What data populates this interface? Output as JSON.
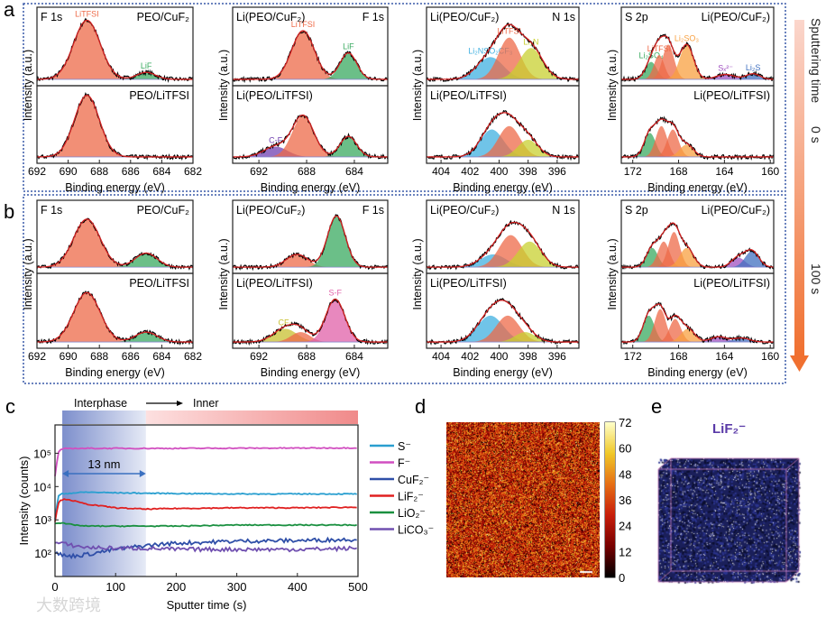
{
  "panel_letters": [
    "a",
    "b",
    "c",
    "d",
    "e"
  ],
  "common": {
    "xlabel": "Binding energy (eV)",
    "ylabel": "Intensity (a.u.)"
  },
  "sputter_arrow": {
    "label": "Sputtering time",
    "start": "0 s",
    "end": "100 s"
  },
  "chart_data": [
    {
      "type": "line",
      "name": "xps-panel-a",
      "panel": "a",
      "plots": [
        {
          "xlim": [
            692,
            682
          ],
          "xticks": [
            692,
            690,
            688,
            686,
            684,
            682
          ],
          "corner_left": "F 1s",
          "corner_right": "PEO/CuF₂",
          "subplots": [
            {
              "label_left": "F 1s",
              "label_right": "PEO/CuF₂",
              "peaks": [
                {
                  "c": 688.8,
                  "h": 0.85,
                  "w": 0.85,
                  "color": "#ee6a48",
                  "label": "LiTFSI"
                },
                {
                  "c": 685.0,
                  "h": 0.1,
                  "w": 0.6,
                  "color": "#3aaa60",
                  "label": "LiF"
                }
              ]
            },
            {
              "label_left": "",
              "label_right": "PEO/LiTFSI",
              "peaks": [
                {
                  "c": 688.8,
                  "h": 0.9,
                  "w": 0.8,
                  "color": "#ee6a48",
                  "label": ""
                }
              ]
            }
          ]
        },
        {
          "xlim": [
            694.2,
            681.2
          ],
          "xticks": [
            692,
            688,
            684
          ],
          "subplots": [
            {
              "label_left": "Li(PEO/CuF₂)",
              "label_right": "F 1s",
              "peaks": [
                {
                  "c": 688.3,
                  "h": 0.7,
                  "w": 0.95,
                  "color": "#ee6a48",
                  "label": "LiTFSI"
                },
                {
                  "c": 684.5,
                  "h": 0.38,
                  "w": 0.7,
                  "color": "#3aaa60",
                  "label": "LiF"
                }
              ]
            },
            {
              "label_left": "Li(PEO/LiTFSI)",
              "label_right": "",
              "peaks": [
                {
                  "c": 690.6,
                  "h": 0.15,
                  "w": 1.0,
                  "color": "#7040b0",
                  "label": "C-F"
                },
                {
                  "c": 688.3,
                  "h": 0.6,
                  "w": 0.9,
                  "color": "#ee6a48",
                  "label": ""
                },
                {
                  "c": 684.5,
                  "h": 0.3,
                  "w": 0.7,
                  "color": "#3aaa60",
                  "label": ""
                }
              ]
            }
          ]
        },
        {
          "xlim": [
            405,
            394.5
          ],
          "xticks": [
            404,
            402,
            400,
            398,
            396
          ],
          "subplots": [
            {
              "label_left": "Li(PEO/CuF₂)",
              "label_right": "N 1s",
              "peaks": [
                {
                  "c": 400.6,
                  "h": 0.32,
                  "w": 0.9,
                  "color": "#40b0e0",
                  "label": "Li₂NSO₂CF₃"
                },
                {
                  "c": 399.3,
                  "h": 0.6,
                  "w": 0.75,
                  "color": "#ee6a48",
                  "label": "LiTFSI"
                },
                {
                  "c": 397.8,
                  "h": 0.45,
                  "w": 0.8,
                  "color": "#c8d030",
                  "label": "Li₃N"
                }
              ]
            },
            {
              "label_left": "Li(PEO/LiTFSI)",
              "label_right": "",
              "peaks": [
                {
                  "c": 400.5,
                  "h": 0.4,
                  "w": 0.8,
                  "color": "#40b0e0",
                  "label": ""
                },
                {
                  "c": 399.3,
                  "h": 0.45,
                  "w": 0.75,
                  "color": "#ee6a48",
                  "label": ""
                },
                {
                  "c": 398.0,
                  "h": 0.25,
                  "w": 0.7,
                  "color": "#c8d030",
                  "label": ""
                }
              ]
            }
          ]
        },
        {
          "xlim": [
            173,
            159.7
          ],
          "xticks": [
            172,
            168,
            164,
            160
          ],
          "subplots": [
            {
              "label_left": "S 2p",
              "label_right": "Li(PEO/CuF₂)",
              "peaks": [
                {
                  "c": 170.4,
                  "h": 0.25,
                  "w": 0.5,
                  "color": "#3aaa60",
                  "label": "Li₂SO₄"
                },
                {
                  "c": 169.7,
                  "h": 0.35,
                  "w": 0.45,
                  "color": "#ee6a48",
                  "label": "LiTFSI"
                },
                {
                  "c": 168.9,
                  "h": 0.5,
                  "w": 0.5,
                  "color": "#ee6a48",
                  "label": ""
                },
                {
                  "c": 167.3,
                  "h": 0.5,
                  "w": 0.6,
                  "color": "#f8a040",
                  "label": "Li₂SO₃"
                },
                {
                  "c": 163.9,
                  "h": 0.07,
                  "w": 0.8,
                  "color": "#a050c0",
                  "label": "Sₓ²⁻"
                },
                {
                  "c": 161.5,
                  "h": 0.08,
                  "w": 0.6,
                  "color": "#4070c0",
                  "label": "Li₂S"
                }
              ]
            },
            {
              "label_left": "",
              "label_right": "Li(PEO/LiTFSI)",
              "peaks": [
                {
                  "c": 170.5,
                  "h": 0.35,
                  "w": 0.5,
                  "color": "#3aaa60",
                  "label": ""
                },
                {
                  "c": 169.5,
                  "h": 0.45,
                  "w": 0.5,
                  "color": "#ee6a48",
                  "label": ""
                },
                {
                  "c": 168.5,
                  "h": 0.4,
                  "w": 0.5,
                  "color": "#ee6a48",
                  "label": ""
                },
                {
                  "c": 167.3,
                  "h": 0.18,
                  "w": 0.6,
                  "color": "#f8a040",
                  "label": ""
                }
              ]
            }
          ]
        }
      ]
    },
    {
      "type": "line",
      "name": "xps-panel-b",
      "panel": "b",
      "plots": [
        {
          "xlim": [
            692,
            682
          ],
          "xticks": [
            692,
            690,
            688,
            686,
            684,
            682
          ],
          "subplots": [
            {
              "label_left": "F 1s",
              "label_right": "PEO/CuF₂",
              "peaks": [
                {
                  "c": 688.8,
                  "h": 0.75,
                  "w": 0.85,
                  "color": "#ee6a48",
                  "label": ""
                },
                {
                  "c": 685.0,
                  "h": 0.22,
                  "w": 0.7,
                  "color": "#3aaa60",
                  "label": ""
                }
              ]
            },
            {
              "label_left": "",
              "label_right": "PEO/LiTFSI",
              "peaks": [
                {
                  "c": 688.8,
                  "h": 0.75,
                  "w": 0.85,
                  "color": "#ee6a48",
                  "label": ""
                },
                {
                  "c": 685.0,
                  "h": 0.15,
                  "w": 0.7,
                  "color": "#3aaa60",
                  "label": ""
                }
              ]
            }
          ]
        },
        {
          "xlim": [
            694.2,
            681.2
          ],
          "xticks": [
            692,
            688,
            684
          ],
          "subplots": [
            {
              "label_left": "Li(PEO/CuF₂)",
              "label_right": "F 1s",
              "peaks": [
                {
                  "c": 688.8,
                  "h": 0.2,
                  "w": 0.9,
                  "color": "#ee6a48",
                  "label": ""
                },
                {
                  "c": 685.5,
                  "h": 0.8,
                  "w": 0.75,
                  "color": "#3aaa60",
                  "label": ""
                }
              ]
            },
            {
              "label_left": "Li(PEO/LiTFSI)",
              "label_right": "",
              "peaks": [
                {
                  "c": 689.8,
                  "h": 0.2,
                  "w": 1.0,
                  "color": "#c8c030",
                  "label": "CF₂"
                },
                {
                  "c": 688.5,
                  "h": 0.15,
                  "w": 0.8,
                  "color": "#ee6a48",
                  "label": ""
                },
                {
                  "c": 685.6,
                  "h": 0.65,
                  "w": 0.8,
                  "color": "#e060a8",
                  "label": "S-F"
                }
              ]
            }
          ]
        },
        {
          "xlim": [
            405,
            394.5
          ],
          "xticks": [
            404,
            402,
            400,
            398,
            396
          ],
          "subplots": [
            {
              "label_left": "Li(PEO/CuF₂)",
              "label_right": "N 1s",
              "peaks": [
                {
                  "c": 400.4,
                  "h": 0.2,
                  "w": 0.9,
                  "color": "#40b0e0",
                  "label": ""
                },
                {
                  "c": 399.2,
                  "h": 0.5,
                  "w": 0.8,
                  "color": "#ee6a48",
                  "label": ""
                },
                {
                  "c": 397.9,
                  "h": 0.4,
                  "w": 0.8,
                  "color": "#c8d030",
                  "label": ""
                }
              ]
            },
            {
              "label_left": "Li(PEO/LiTFSI)",
              "label_right": "",
              "peaks": [
                {
                  "c": 400.6,
                  "h": 0.4,
                  "w": 0.9,
                  "color": "#40b0e0",
                  "label": ""
                },
                {
                  "c": 399.4,
                  "h": 0.4,
                  "w": 0.8,
                  "color": "#ee6a48",
                  "label": ""
                },
                {
                  "c": 398.2,
                  "h": 0.15,
                  "w": 0.7,
                  "color": "#c8d030",
                  "label": ""
                }
              ]
            }
          ]
        },
        {
          "xlim": [
            173,
            159.7
          ],
          "xticks": [
            172,
            168,
            164,
            160
          ],
          "subplots": [
            {
              "label_left": "S 2p",
              "label_right": "Li(PEO/CuF₂)",
              "peaks": [
                {
                  "c": 170.3,
                  "h": 0.3,
                  "w": 0.5,
                  "color": "#3aaa60",
                  "label": ""
                },
                {
                  "c": 169.3,
                  "h": 0.4,
                  "w": 0.5,
                  "color": "#ee6a48",
                  "label": ""
                },
                {
                  "c": 168.4,
                  "h": 0.55,
                  "w": 0.5,
                  "color": "#ee6a48",
                  "label": ""
                },
                {
                  "c": 167.3,
                  "h": 0.3,
                  "w": 0.6,
                  "color": "#f8a040",
                  "label": ""
                },
                {
                  "c": 162.8,
                  "h": 0.15,
                  "w": 0.6,
                  "color": "#a050c0",
                  "label": ""
                },
                {
                  "c": 161.6,
                  "h": 0.25,
                  "w": 0.6,
                  "color": "#4070c0",
                  "label": ""
                }
              ]
            },
            {
              "label_left": "",
              "label_right": "Li(PEO/LiTFSI)",
              "peaks": [
                {
                  "c": 170.6,
                  "h": 0.4,
                  "w": 0.5,
                  "color": "#3aaa60",
                  "label": ""
                },
                {
                  "c": 169.6,
                  "h": 0.5,
                  "w": 0.5,
                  "color": "#ee6a48",
                  "label": ""
                },
                {
                  "c": 168.3,
                  "h": 0.35,
                  "w": 0.5,
                  "color": "#ee6a48",
                  "label": ""
                },
                {
                  "c": 167.2,
                  "h": 0.2,
                  "w": 0.6,
                  "color": "#f8a040",
                  "label": ""
                },
                {
                  "c": 164.5,
                  "h": 0.08,
                  "w": 0.7,
                  "color": "#a050c0",
                  "label": ""
                },
                {
                  "c": 162.5,
                  "h": 0.06,
                  "w": 0.7,
                  "color": "#4070c0",
                  "label": ""
                }
              ]
            }
          ]
        }
      ]
    },
    {
      "type": "line",
      "name": "tof-sims-depth-profile",
      "panel": "c",
      "xlabel": "Sputter time (s)",
      "ylabel": "Intensity (counts)",
      "xlim": [
        0,
        500
      ],
      "ylim_log10": [
        1.3,
        5.85
      ],
      "xticks": [
        0,
        100,
        200,
        300,
        400,
        500
      ],
      "yticks": [
        {
          "value": 100,
          "label": "10²"
        },
        {
          "value": 1000,
          "label": "10³"
        },
        {
          "value": 10000,
          "label": "10⁴"
        },
        {
          "value": 100000,
          "label": "10⁵"
        }
      ],
      "banner": {
        "left": "Interphase",
        "right": "Inner",
        "region_end": 150,
        "region_start": 12
      },
      "annotation": {
        "text": "13 nm",
        "from": 12,
        "to": 150
      },
      "x": [
        0,
        5,
        10,
        20,
        50,
        100,
        150,
        200,
        300,
        400,
        500
      ],
      "series": [
        {
          "name": "S⁻",
          "color": "#2a9fd0",
          "values": [
            1000,
            5000,
            6000,
            6200,
            6800,
            6500,
            6300,
            6200,
            6000,
            6000,
            6000
          ]
        },
        {
          "name": "F⁻",
          "color": "#d14fc0",
          "values": [
            20000,
            100000,
            130000,
            140000,
            140000,
            140000,
            140000,
            140000,
            142000,
            143000,
            145000
          ]
        },
        {
          "name": "CuF₂⁻",
          "color": "#2f4fa8",
          "values": [
            100,
            100,
            90,
            80,
            90,
            130,
            170,
            200,
            230,
            240,
            260
          ]
        },
        {
          "name": "LiF₂⁻",
          "color": "#e02020",
          "values": [
            900,
            3000,
            4000,
            4200,
            3000,
            2300,
            2100,
            2200,
            2300,
            2300,
            2400
          ]
        },
        {
          "name": "LiO₂⁻",
          "color": "#1a9040",
          "values": [
            800,
            800,
            800,
            750,
            650,
            650,
            650,
            650,
            700,
            700,
            700
          ]
        },
        {
          "name": "LiCO₃⁻",
          "color": "#7050b0",
          "values": [
            200,
            200,
            200,
            180,
            150,
            140,
            140,
            130,
            130,
            130,
            140
          ]
        }
      ]
    },
    {
      "type": "heatmap",
      "name": "lif2-map",
      "panel": "d",
      "label": "LiF₂⁻",
      "colorbar_ticks": [
        0,
        12,
        24,
        36,
        48,
        60,
        72
      ],
      "range": [
        0,
        72
      ],
      "typical": 30
    },
    {
      "type": "other",
      "name": "lif2-3d-render",
      "panel": "e",
      "label": "LiF₂⁻",
      "color": "#1a1f5a"
    }
  ],
  "watermark": "大数跨境"
}
